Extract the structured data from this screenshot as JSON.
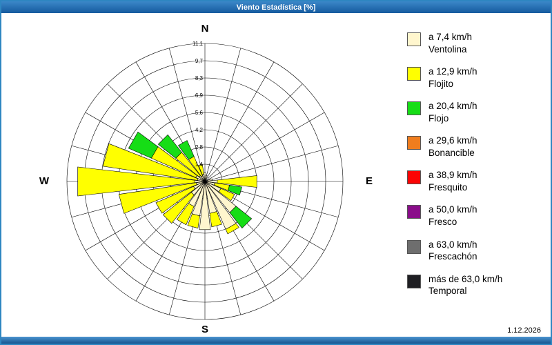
{
  "window": {
    "title": "Viento Estadística [%]",
    "date": "1.12.2026"
  },
  "compass": {
    "north": "N",
    "east": "E",
    "south": "S",
    "west": "W"
  },
  "axis": {
    "tick_labels": [
      "1,4",
      "2,8",
      "4,2",
      "5,6",
      "6,9",
      "8,3",
      "9,7",
      "11,1"
    ],
    "max": 11.1,
    "rings": 8,
    "spokes": 24
  },
  "legend": [
    {
      "speed": "a 7,4 km/h",
      "name": "Ventolina",
      "color": "#FFF6CE"
    },
    {
      "speed": "a 12,9 km/h",
      "name": "Flojito",
      "color": "#FFFF00"
    },
    {
      "speed": "a 20,4 km/h",
      "name": "Flojo",
      "color": "#16DD16"
    },
    {
      "speed": "a 29,6 km/h",
      "name": "Bonancible",
      "color": "#F07D1E"
    },
    {
      "speed": "a 38,9 km/h",
      "name": "Fresquito",
      "color": "#FB0404"
    },
    {
      "speed": "a 50,0 km/h",
      "name": "Fresco",
      "color": "#8A0D8A"
    },
    {
      "speed": "a 63,0 km/h",
      "name": "Frescachón",
      "color": "#6E6E6E"
    },
    {
      "speed": "más de 63,0 km/h",
      "name": "Temporal",
      "color": "#1F1F23"
    }
  ],
  "chart_data": {
    "type": "windrose",
    "unit": "%",
    "title": "Viento Estadística [%]",
    "radial_max": 11.1,
    "radial_ticks": [
      1.4,
      2.8,
      4.2,
      5.6,
      6.9,
      8.3,
      9.7,
      11.1
    ],
    "classes": [
      "Ventolina",
      "Flojito",
      "Flojo",
      "Bonancible",
      "Fresquito",
      "Fresco",
      "Frescachón",
      "Temporal"
    ],
    "petals": [
      {
        "dir": 0,
        "segments": [
          {
            "c": "Ventolina",
            "v": 0.7
          }
        ]
      },
      {
        "dir": 15,
        "segments": [
          {
            "c": "Ventolina",
            "v": 0.5
          }
        ]
      },
      {
        "dir": 75,
        "segments": [
          {
            "c": "Ventolina",
            "v": 0.6
          }
        ]
      },
      {
        "dir": 90,
        "segments": [
          {
            "c": "Ventolina",
            "v": 1.0
          },
          {
            "c": "Flojito",
            "v": 3.2
          }
        ]
      },
      {
        "dir": 105,
        "segments": [
          {
            "c": "Ventolina",
            "v": 0.8
          },
          {
            "c": "Flojito",
            "v": 1.2
          },
          {
            "c": "Flojo",
            "v": 1.0
          }
        ]
      },
      {
        "dir": 120,
        "segments": [
          {
            "c": "Ventolina",
            "v": 1.4
          },
          {
            "c": "Flojito",
            "v": 1.2
          }
        ]
      },
      {
        "dir": 135,
        "segments": [
          {
            "c": "Ventolina",
            "v": 3.2
          },
          {
            "c": "Flojo",
            "v": 1.6
          }
        ]
      },
      {
        "dir": 150,
        "segments": [
          {
            "c": "Ventolina",
            "v": 4.2
          },
          {
            "c": "Flojito",
            "v": 0.4
          }
        ]
      },
      {
        "dir": 165,
        "segments": [
          {
            "c": "Ventolina",
            "v": 2.6
          },
          {
            "c": "Flojito",
            "v": 1.1
          }
        ]
      },
      {
        "dir": 180,
        "segments": [
          {
            "c": "Ventolina",
            "v": 3.9
          }
        ]
      },
      {
        "dir": 195,
        "segments": [
          {
            "c": "Ventolina",
            "v": 2.8
          },
          {
            "c": "Flojito",
            "v": 1.0
          }
        ]
      },
      {
        "dir": 210,
        "segments": [
          {
            "c": "Ventolina",
            "v": 2.2
          },
          {
            "c": "Flojito",
            "v": 1.6
          }
        ]
      },
      {
        "dir": 225,
        "segments": [
          {
            "c": "Ventolina",
            "v": 1.4
          },
          {
            "c": "Flojito",
            "v": 2.9
          }
        ]
      },
      {
        "dir": 240,
        "segments": [
          {
            "c": "Ventolina",
            "v": 1.0
          },
          {
            "c": "Flojito",
            "v": 3.3
          }
        ]
      },
      {
        "dir": 255,
        "segments": [
          {
            "c": "Ventolina",
            "v": 0.7
          },
          {
            "c": "Flojito",
            "v": 6.3
          }
        ]
      },
      {
        "dir": 270,
        "segments": [
          {
            "c": "Ventolina",
            "v": 0.8
          },
          {
            "c": "Flojito",
            "v": 9.5
          }
        ]
      },
      {
        "dir": 285,
        "segments": [
          {
            "c": "Ventolina",
            "v": 0.6
          },
          {
            "c": "Flojito",
            "v": 7.7
          }
        ]
      },
      {
        "dir": 300,
        "segments": [
          {
            "c": "Ventolina",
            "v": 0.8
          },
          {
            "c": "Flojito",
            "v": 3.9
          },
          {
            "c": "Flojo",
            "v": 2.0
          }
        ]
      },
      {
        "dir": 315,
        "segments": [
          {
            "c": "Ventolina",
            "v": 0.6
          },
          {
            "c": "Flojito",
            "v": 2.4
          },
          {
            "c": "Flojo",
            "v": 1.8
          }
        ]
      },
      {
        "dir": 330,
        "segments": [
          {
            "c": "Ventolina",
            "v": 0.5
          },
          {
            "c": "Flojito",
            "v": 1.7
          },
          {
            "c": "Flojo",
            "v": 1.4
          }
        ]
      },
      {
        "dir": 345,
        "segments": [
          {
            "c": "Ventolina",
            "v": 0.6
          },
          {
            "c": "Flojito",
            "v": 0.8
          }
        ]
      }
    ]
  }
}
